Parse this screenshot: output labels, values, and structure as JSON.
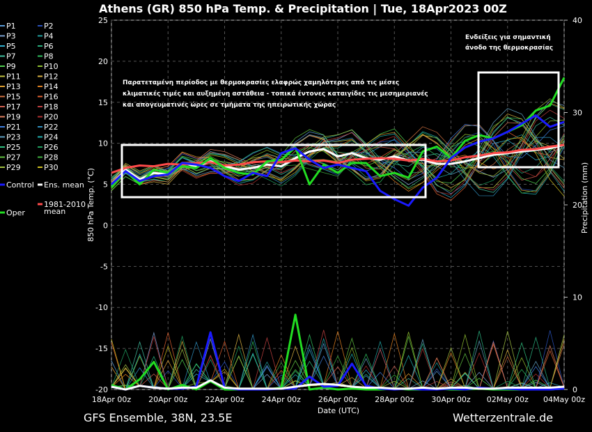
{
  "title": "Athens  (GR)  850 hPa Temp. & Precipitation | Tue, 18Apr2023 00Z",
  "footer_left": "GFS Ensemble, 38N, 23.5E",
  "footer_right": "Wetterzentrale.de",
  "colors": {
    "background": "#000000",
    "operational": "#22dd22",
    "control": "#1a1aff",
    "ens_mean": "#ffffff",
    "climate_mean": "#ff4a4a",
    "box": "#ffffff"
  },
  "annotations": {
    "box1": [
      "Παρατεταμένη περίοδος με θερμοκρασίες ελαφρώς χαμηλότερες από τις μέσες",
      "κλιματικές τιμές και αυξημένη αστάθεια - τοπικά έντονες καταιγίδες τις μεσημεριανές",
      "και απογευματινές ώρες σε τμήματα της ηπειρωτικής χώρας"
    ],
    "box2": [
      "Ενδείξεις για σημαντική",
      "άνοδο της θερμοκρασίας"
    ]
  },
  "legend": {
    "members": [
      {
        "label": "P1",
        "color": "#5a9bd8"
      },
      {
        "label": "P2",
        "color": "#2a52be"
      },
      {
        "label": "P3",
        "color": "#7aa0d0"
      },
      {
        "label": "P4",
        "color": "#20a0a0"
      },
      {
        "label": "P5",
        "color": "#30b0d0"
      },
      {
        "label": "P6",
        "color": "#2ab080"
      },
      {
        "label": "P7",
        "color": "#40c0a0"
      },
      {
        "label": "P8",
        "color": "#30c060"
      },
      {
        "label": "P9",
        "color": "#50d050"
      },
      {
        "label": "P10",
        "color": "#90c030"
      },
      {
        "label": "P11",
        "color": "#c0c040"
      },
      {
        "label": "P12",
        "color": "#d8b040"
      },
      {
        "label": "P13",
        "color": "#e0a030"
      },
      {
        "label": "P14",
        "color": "#e08020"
      },
      {
        "label": "P15",
        "color": "#d07040"
      },
      {
        "label": "P16",
        "color": "#e06030"
      },
      {
        "label": "P17",
        "color": "#d06050"
      },
      {
        "label": "P18",
        "color": "#c04040"
      },
      {
        "label": "P19",
        "color": "#e08060"
      },
      {
        "label": "P20",
        "color": "#b03030"
      },
      {
        "label": "P21",
        "color": "#4080e0"
      },
      {
        "label": "P22",
        "color": "#3090c0"
      },
      {
        "label": "P23",
        "color": "#60a0c0"
      },
      {
        "label": "P24",
        "color": "#20b0b0"
      },
      {
        "label": "P25",
        "color": "#30c080"
      },
      {
        "label": "P26",
        "color": "#20a060"
      },
      {
        "label": "P27",
        "color": "#60c040"
      },
      {
        "label": "P28",
        "color": "#40b040"
      },
      {
        "label": "P29",
        "color": "#a0c040"
      },
      {
        "label": "P30",
        "color": "#d0c020"
      }
    ],
    "control": "Control",
    "ens_mean": "Ens. mean",
    "oper": "Oper",
    "climate": [
      "1981-2010",
      "mean"
    ]
  },
  "chart_data": {
    "type": "line",
    "title": "Athens  (GR)  850 hPa Temp. & Precipitation | Tue, 18Apr2023 00Z",
    "xlabel": "Date (UTC)",
    "ylabel": "850 hPa Temp. (°C)",
    "y2label": "Precipitation (mm)",
    "ylim": [
      -20,
      25
    ],
    "y2lim": [
      0,
      40
    ],
    "yticks": [
      25,
      20,
      15,
      10,
      5,
      0,
      -5,
      -10,
      -15,
      -20
    ],
    "y2ticks": [
      40,
      30,
      20,
      10,
      0
    ],
    "x_range": [
      "18Apr 00z",
      "04May 00z"
    ],
    "xticks": [
      "18Apr 00z",
      "20Apr 00z",
      "22Apr 00z",
      "24Apr 00z",
      "26Apr 00z",
      "28Apr 00z",
      "30Apr 00z",
      "02May 00z",
      "04May 00z"
    ],
    "grid": true,
    "x": [
      0,
      12,
      24,
      36,
      48,
      60,
      72,
      84,
      96,
      108,
      120,
      132,
      144,
      156,
      168,
      180,
      192,
      204,
      216,
      228,
      240,
      252,
      264,
      276,
      288,
      300,
      312,
      324,
      336,
      348,
      360,
      372,
      384
    ],
    "temperature_series": [
      {
        "name": "Ens. mean",
        "values": [
          5,
          6.8,
          5.6,
          6.4,
          6.2,
          7.6,
          7.2,
          7.8,
          7.2,
          6.8,
          7.0,
          7.4,
          7.2,
          8.2,
          9.0,
          9.3,
          8.4,
          8.8,
          8.2,
          8.0,
          8.4,
          7.9,
          8.0,
          7.5,
          7.5,
          7.8,
          8.2,
          8.6,
          8.8,
          9.0,
          9.2,
          9.4,
          9.8
        ]
      },
      {
        "name": "1981-2010 mean",
        "values": [
          6.4,
          7.0,
          7.3,
          7.2,
          7.5,
          7.4,
          7.6,
          7.7,
          7.3,
          7.4,
          7.7,
          7.8,
          7.7,
          7.9,
          7.8,
          7.9,
          7.6,
          8.0,
          8.1,
          8.2,
          8.1,
          7.9,
          8.1,
          7.8,
          7.9,
          8.3,
          8.5,
          8.8,
          8.9,
          9.2,
          9.3,
          9.6,
          9.8
        ]
      },
      {
        "name": "Oper",
        "values": [
          4.6,
          6.6,
          5.0,
          6.8,
          6.4,
          7.2,
          7.0,
          8.2,
          7.0,
          6.4,
          6.2,
          7.8,
          8.0,
          9.5,
          5.0,
          7.4,
          6.4,
          7.6,
          7.6,
          6.0,
          6.4,
          5.8,
          9.0,
          9.6,
          8.2,
          10.3,
          11.0,
          10.6,
          11.4,
          12.2,
          14.0,
          14.6,
          18.0
        ]
      },
      {
        "name": "Control",
        "values": [
          5.0,
          6.6,
          5.4,
          6.0,
          6.2,
          7.6,
          7.4,
          7.0,
          6.0,
          5.4,
          6.4,
          6.0,
          8.8,
          9.4,
          8.0,
          7.0,
          7.4,
          7.0,
          6.6,
          4.2,
          3.2,
          2.4,
          4.6,
          5.8,
          8.2,
          9.5,
          10.2,
          10.6,
          11.4,
          12.4,
          13.4,
          12.0,
          12.6
        ]
      }
    ],
    "precipitation_series": [
      {
        "name": "Oper",
        "values": [
          0.5,
          0,
          1.1,
          3.0,
          0,
          0.5,
          0,
          0.9,
          0,
          0,
          0.1,
          0,
          0.2,
          8.1,
          0,
          0.2,
          0,
          0.1,
          0,
          0,
          0.1,
          0,
          0,
          0.1,
          0,
          0,
          0.1,
          0,
          0,
          0,
          0,
          0,
          0.1
        ]
      },
      {
        "name": "Control",
        "values": [
          0.3,
          0,
          0.4,
          0.2,
          0.1,
          0.1,
          0.3,
          6.2,
          0.2,
          0,
          0,
          0,
          0.1,
          0.1,
          1.4,
          0.3,
          0.4,
          2.8,
          0.4,
          0.1,
          0,
          0.1,
          0,
          0,
          0.1,
          0,
          0.2,
          0.1,
          0.1,
          0,
          0,
          0,
          0.1
        ]
      },
      {
        "name": "Ens. mean",
        "values": [
          0.3,
          0,
          0.4,
          0.2,
          0.1,
          0.2,
          0.2,
          1.0,
          0.2,
          0.1,
          0.1,
          0.1,
          0.1,
          0.3,
          0.5,
          0.6,
          0.5,
          0.3,
          0.2,
          0.2,
          0.1,
          0.1,
          0.2,
          0.1,
          0.2,
          0.2,
          0.1,
          0.1,
          0.2,
          0.2,
          0.2,
          0.2,
          0.3
        ]
      }
    ]
  }
}
